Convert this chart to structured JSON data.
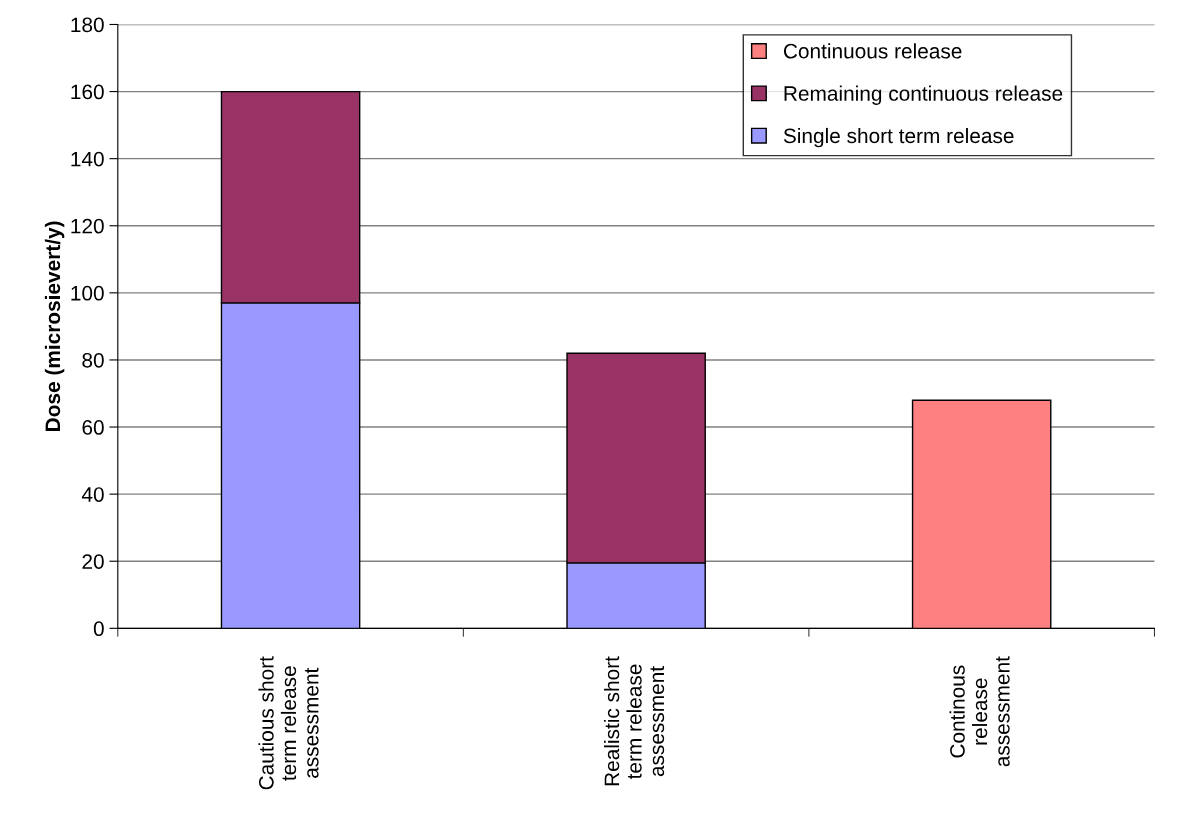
{
  "chart_data": {
    "type": "bar",
    "stacked": true,
    "ylabel": "Dose (microsievert/y)",
    "categories": [
      "Cautious short\nterm release\nassessment",
      "Realistic short\nterm release\nassessment",
      "Continous\nrelease\nassessment"
    ],
    "series": [
      {
        "name": "Single short term release",
        "color": "#9999ff",
        "values": [
          97,
          19.5,
          null
        ]
      },
      {
        "name": "Remaining continuous release",
        "color": "#993366",
        "values": [
          63,
          62.5,
          null
        ]
      },
      {
        "name": "Continuous release",
        "color": "#ff8080",
        "values": [
          null,
          null,
          68
        ]
      }
    ],
    "ylim": [
      0,
      180
    ],
    "yticks": [
      0,
      20,
      40,
      60,
      80,
      100,
      120,
      140,
      160,
      180
    ],
    "grid": "y",
    "legend": "top right"
  }
}
